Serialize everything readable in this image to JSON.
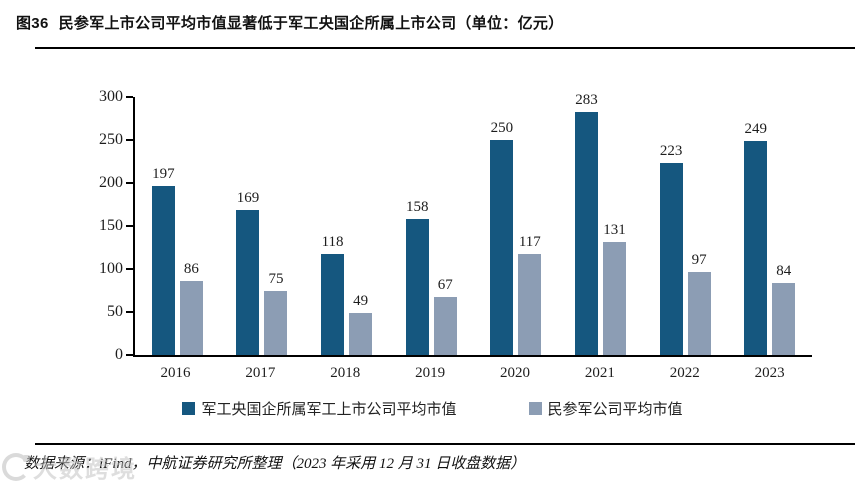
{
  "title": {
    "tag": "图36",
    "text": "民参军上市公司平均市值显著低于军工央国企所属上市公司（单位：亿元）"
  },
  "footer": {
    "source": "数据来源：iFind，中航证券研究所整理（2023 年采用 12 月 31 日收盘数据）"
  },
  "watermark": {
    "text": "大数跨境"
  },
  "chart_data": {
    "type": "bar",
    "title": "民参军上市公司平均市值显著低于军工央国企所属上市公司",
    "unit": "亿元",
    "categories": [
      "2016",
      "2017",
      "2018",
      "2019",
      "2020",
      "2021",
      "2022",
      "2023"
    ],
    "series": [
      {
        "name": "军工央国企所属军工上市公司平均市值",
        "color": "#15577F",
        "values": [
          197,
          169,
          118,
          158,
          250,
          283,
          223,
          249
        ]
      },
      {
        "name": "民参军公司平均市值",
        "color": "#8C9DB4",
        "values": [
          86,
          75,
          49,
          67,
          117,
          131,
          97,
          84
        ]
      }
    ],
    "xlabel": "",
    "ylabel": "",
    "ylim": [
      0,
      300
    ],
    "yticks": [
      0,
      50,
      100,
      150,
      200,
      250,
      300
    ],
    "grid": false,
    "legend_position": "bottom",
    "value_labels": true
  }
}
